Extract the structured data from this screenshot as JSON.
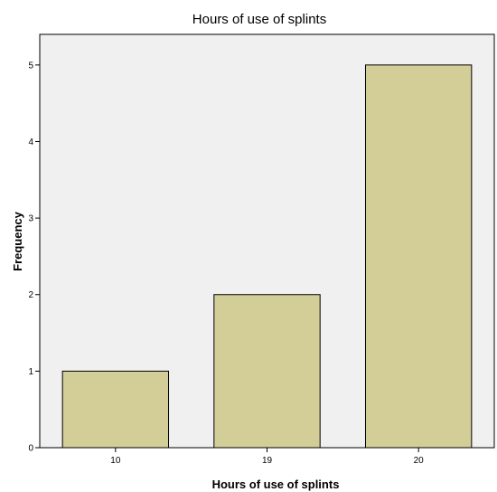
{
  "chart_data": {
    "type": "bar",
    "title": "Hours of use of splints",
    "xlabel": "Hours of use of splints",
    "ylabel": "Frequency",
    "categories": [
      "10",
      "19",
      "20"
    ],
    "values": [
      1,
      2,
      5
    ],
    "ylim": [
      0,
      5.4
    ],
    "yticks": [
      "0",
      "1",
      "2",
      "3",
      "4",
      "5"
    ],
    "grid": false,
    "bar_color": "#d3ce97",
    "bar_edge_color": "#000000",
    "plot_background": "#f0f0f0"
  }
}
